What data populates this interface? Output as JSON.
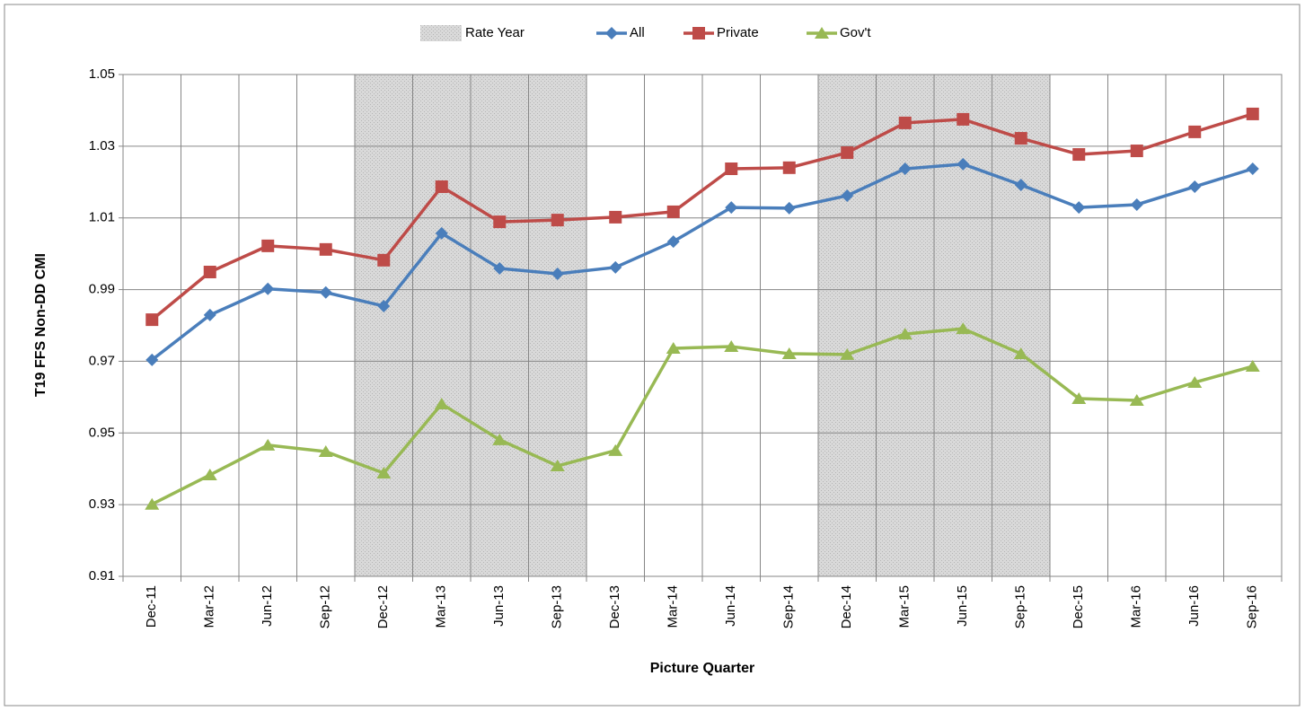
{
  "chart_data": {
    "type": "line",
    "xlabel": "Picture Quarter",
    "ylabel": "T19 FFS Non-DD CMI",
    "categories": [
      "Dec-11",
      "Mar-12",
      "Jun-12",
      "Sep-12",
      "Dec-12",
      "Mar-13",
      "Jun-13",
      "Sep-13",
      "Dec-13",
      "Mar-14",
      "Jun-14",
      "Sep-14",
      "Dec-14",
      "Mar-15",
      "Jun-15",
      "Sep-15",
      "Dec-15",
      "Mar-16",
      "Jun-16",
      "Sep-16"
    ],
    "bands": {
      "name": "Rate Year",
      "color": "#d4d4d4",
      "ranges": [
        [
          "Dec-12",
          "Sep-13"
        ],
        [
          "Dec-14",
          "Sep-15"
        ]
      ]
    },
    "series": [
      {
        "name": "All",
        "color": "#4a7ebb",
        "marker": "diamond",
        "values": [
          0.9704,
          0.9829,
          0.9902,
          0.9892,
          0.9854,
          1.0057,
          0.9959,
          0.9944,
          0.9962,
          1.0034,
          1.0129,
          1.0127,
          1.0162,
          1.0237,
          1.025,
          1.0192,
          1.0129,
          1.0137,
          1.0187,
          1.0237
        ]
      },
      {
        "name": "Private",
        "color": "#be4b48",
        "marker": "square",
        "values": [
          0.9816,
          0.9949,
          1.0022,
          1.0012,
          0.9982,
          1.0187,
          1.0089,
          1.0094,
          1.0102,
          1.0117,
          1.0237,
          1.024,
          1.0282,
          1.0365,
          1.0375,
          1.0322,
          1.0277,
          1.0287,
          1.034,
          1.039
        ]
      },
      {
        "name": "Gov't",
        "color": "#98b954",
        "marker": "triangle",
        "values": [
          0.9301,
          0.9383,
          0.9466,
          0.9448,
          0.9388,
          0.9581,
          0.9481,
          0.9408,
          0.9451,
          0.9736,
          0.9741,
          0.9721,
          0.9719,
          0.9776,
          0.9791,
          0.9721,
          0.9596,
          0.9591,
          0.9641,
          0.9686
        ]
      }
    ],
    "ylim": [
      0.91,
      1.05
    ],
    "yticks": [
      0.91,
      0.93,
      0.95,
      0.97,
      0.99,
      1.01,
      1.03,
      1.05
    ],
    "grid": true,
    "legend": "top"
  }
}
